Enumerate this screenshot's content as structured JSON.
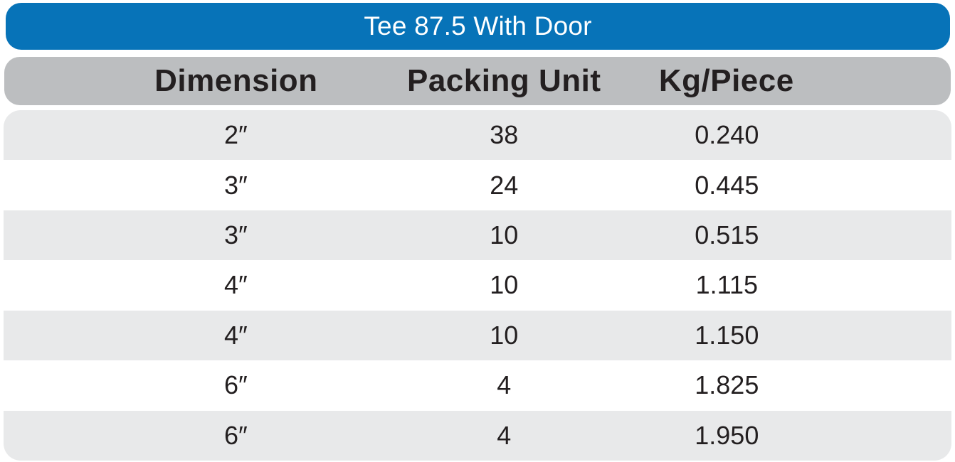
{
  "title_bar": {
    "title": "Tee 87.5 With Door"
  },
  "table": {
    "columns": [
      "Dimension",
      "Packing Unit",
      "Kg/Piece"
    ],
    "rows": [
      {
        "dimension": "2″",
        "packing_unit": "38",
        "kg_per_piece": "0.240"
      },
      {
        "dimension": "3″",
        "packing_unit": "24",
        "kg_per_piece": "0.445"
      },
      {
        "dimension": "3″",
        "packing_unit": "10",
        "kg_per_piece": "0.515"
      },
      {
        "dimension": "4″",
        "packing_unit": "10",
        "kg_per_piece": "1.115"
      },
      {
        "dimension": "4″",
        "packing_unit": "10",
        "kg_per_piece": "1.150"
      },
      {
        "dimension": "6″",
        "packing_unit": "4",
        "kg_per_piece": "1.825"
      },
      {
        "dimension": "6″",
        "packing_unit": "4",
        "kg_per_piece": "1.950"
      }
    ]
  },
  "colors": {
    "title_bar_bg": "#0773B8",
    "title_text": "#FFFFFF",
    "header_bg": "#BCBEC0",
    "row_alt_bg": "#E8E9EA",
    "row_bg": "#FFFFFF",
    "text": "#231F20"
  }
}
